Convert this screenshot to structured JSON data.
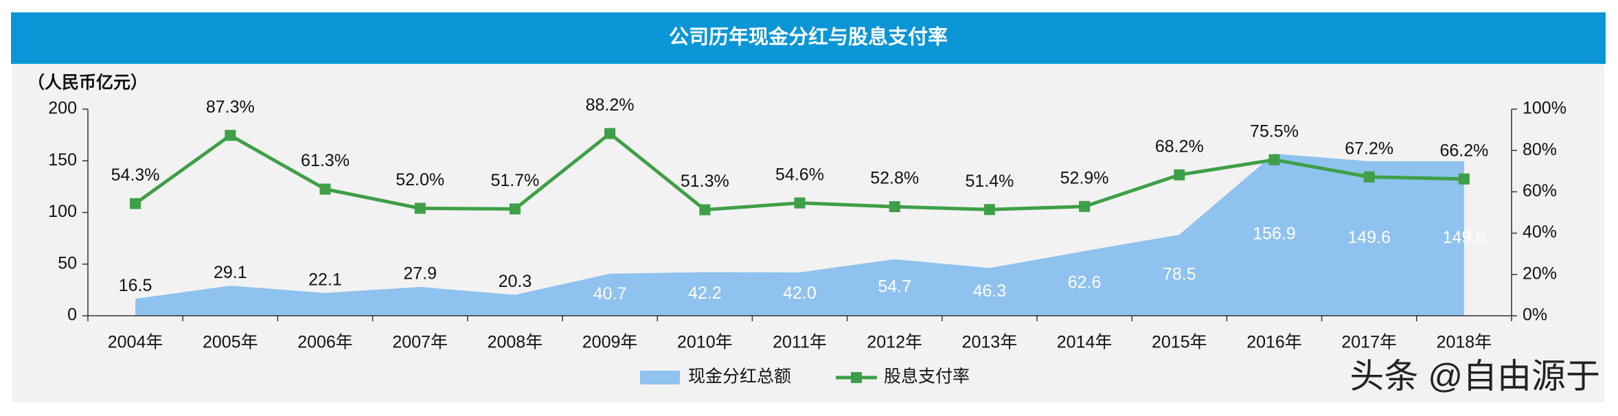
{
  "chart_data": {
    "type": "combo",
    "title": "公司历年现金分红与股息支付率",
    "y_axis_label": "（人民币亿元）",
    "watermark": "头条 @自由源于",
    "categories": [
      "2004年",
      "2005年",
      "2006年",
      "2007年",
      "2008年",
      "2009年",
      "2010年",
      "2011年",
      "2012年",
      "2013年",
      "2014年",
      "2015年",
      "2016年",
      "2017年",
      "2018年"
    ],
    "series": [
      {
        "name": "现金分红总额",
        "type": "area",
        "color": "#8fc2ee",
        "values": [
          16.5,
          29.1,
          22.1,
          27.9,
          20.3,
          40.7,
          42.2,
          42.0,
          54.7,
          46.3,
          62.6,
          78.5,
          156.9,
          149.6,
          149.6
        ],
        "value_labels": [
          "16.5",
          "29.1",
          "22.1",
          "27.9",
          "20.3",
          "40.7",
          "42.2",
          "42.0",
          "54.7",
          "46.3",
          "62.6",
          "78.5",
          "156.9",
          "149.6",
          "149.6"
        ]
      },
      {
        "name": "股息支付率",
        "type": "line",
        "axis": "y2",
        "color": "#3f9f48",
        "values": [
          54.3,
          87.3,
          61.3,
          52.0,
          51.7,
          88.2,
          51.3,
          54.6,
          52.8,
          51.4,
          52.9,
          68.2,
          75.5,
          67.2,
          66.2
        ],
        "value_labels": [
          "54.3%",
          "87.3%",
          "61.3%",
          "52.0%",
          "51.7%",
          "88.2%",
          "51.3%",
          "54.6%",
          "52.8%",
          "51.4%",
          "52.9%",
          "68.2%",
          "75.5%",
          "67.2%",
          "66.2%"
        ]
      }
    ],
    "ylim": [
      0,
      200
    ],
    "yticks": [
      0,
      50,
      100,
      150,
      200
    ],
    "y2lim": [
      0,
      100
    ],
    "y2ticks": [
      {
        "value": 0,
        "label": "0%"
      },
      {
        "value": 20,
        "label": "20%"
      },
      {
        "value": 40,
        "label": "40%"
      },
      {
        "value": 60,
        "label": "60%"
      },
      {
        "value": 80,
        "label": "80%"
      },
      {
        "value": 100,
        "label": "100%"
      }
    ]
  }
}
